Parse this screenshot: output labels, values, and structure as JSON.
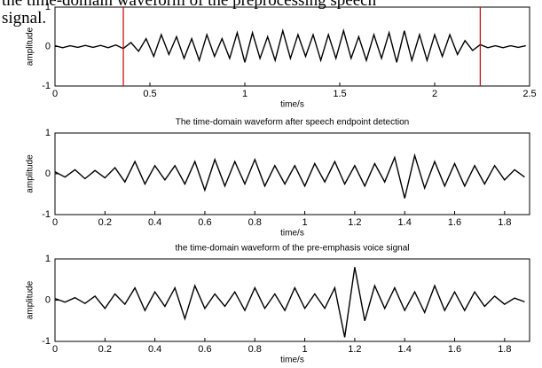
{
  "chart_data": [
    {
      "type": "line",
      "title": "the time-domain waveform of the preprocessing speech signal.",
      "xlabel": "time/s",
      "ylabel": "amplitude",
      "x": [
        0,
        0.04,
        0.08,
        0.12,
        0.16,
        0.2,
        0.24,
        0.28,
        0.32,
        0.36,
        0.4,
        0.44,
        0.48,
        0.52,
        0.56,
        0.6,
        0.64,
        0.68,
        0.72,
        0.76,
        0.8,
        0.84,
        0.88,
        0.92,
        0.96,
        1,
        1.04,
        1.08,
        1.12,
        1.16,
        1.2,
        1.24,
        1.28,
        1.32,
        1.36,
        1.4,
        1.44,
        1.48,
        1.52,
        1.56,
        1.6,
        1.64,
        1.68,
        1.72,
        1.76,
        1.8,
        1.84,
        1.88,
        1.92,
        1.96,
        2,
        2.04,
        2.08,
        2.12,
        2.16,
        2.2,
        2.24,
        2.28,
        2.32,
        2.36,
        2.4,
        2.44,
        2.48
      ],
      "series": [
        {
          "color": "#000000",
          "values": [
            0.02,
            -0.03,
            0.02,
            -0.02,
            0.03,
            -0.02,
            0.03,
            -0.03,
            0.04,
            -0.05,
            0.1,
            -0.12,
            0.2,
            -0.25,
            0.3,
            -0.2,
            0.25,
            -0.3,
            0.2,
            -0.35,
            0.3,
            -0.25,
            0.2,
            -0.3,
            0.35,
            -0.4,
            0.35,
            -0.3,
            0.25,
            -0.35,
            0.4,
            -0.3,
            0.3,
            -0.25,
            0.3,
            -0.35,
            0.3,
            -0.3,
            0.4,
            -0.3,
            0.25,
            -0.35,
            0.3,
            -0.3,
            0.35,
            -0.4,
            0.4,
            -0.35,
            0.3,
            -0.35,
            0.3,
            -0.25,
            0.3,
            -0.2,
            0.15,
            -0.1,
            0.05,
            -0.03,
            0.02,
            -0.03,
            0.02,
            -0.02,
            0.02
          ]
        }
      ],
      "vlines": {
        "color": "#cc0000",
        "x": [
          0.36,
          2.24
        ]
      },
      "xlim": [
        0,
        2.5
      ],
      "xticks": [
        0,
        0.5,
        1,
        1.5,
        2,
        2.5
      ],
      "ylim": [
        -1,
        1
      ],
      "yticks": [
        -1,
        0,
        1
      ]
    },
    {
      "type": "line",
      "title": "The time-domain waveform after speech endpoint detection",
      "xlabel": "time/s",
      "ylabel": "amplitude",
      "x": [
        0,
        0.04,
        0.08,
        0.12,
        0.16,
        0.2,
        0.24,
        0.28,
        0.32,
        0.36,
        0.4,
        0.44,
        0.48,
        0.52,
        0.56,
        0.6,
        0.64,
        0.68,
        0.72,
        0.76,
        0.8,
        0.84,
        0.88,
        0.92,
        0.96,
        1,
        1.04,
        1.08,
        1.12,
        1.16,
        1.2,
        1.24,
        1.28,
        1.32,
        1.36,
        1.4,
        1.44,
        1.48,
        1.52,
        1.56,
        1.6,
        1.64,
        1.68,
        1.72,
        1.76,
        1.8,
        1.84,
        1.88
      ],
      "series": [
        {
          "color": "#000000",
          "values": [
            0.05,
            -0.08,
            0.1,
            -0.12,
            0.08,
            -0.1,
            0.15,
            -0.2,
            0.3,
            -0.25,
            0.2,
            -0.15,
            0.2,
            -0.25,
            0.3,
            -0.4,
            0.35,
            -0.3,
            0.3,
            -0.25,
            0.35,
            -0.3,
            0.2,
            -0.25,
            0.2,
            -0.3,
            0.25,
            -0.2,
            0.3,
            -0.25,
            0.2,
            -0.3,
            0.25,
            -0.2,
            0.4,
            -0.6,
            0.45,
            -0.35,
            0.3,
            -0.3,
            0.25,
            -0.3,
            0.2,
            -0.25,
            0.2,
            -0.15,
            0.1,
            -0.08
          ]
        }
      ],
      "xlim": [
        0,
        1.9
      ],
      "xticks": [
        0,
        0.2,
        0.4,
        0.6,
        0.8,
        1,
        1.2,
        1.4,
        1.6,
        1.8
      ],
      "ylim": [
        -1,
        1
      ],
      "yticks": [
        -1,
        0,
        1
      ]
    },
    {
      "type": "line",
      "title": "the time-domain waveform of the pre-emphasis voice signal",
      "xlabel": "time/s",
      "ylabel": "amplitude",
      "x": [
        0,
        0.04,
        0.08,
        0.12,
        0.16,
        0.2,
        0.24,
        0.28,
        0.32,
        0.36,
        0.4,
        0.44,
        0.48,
        0.52,
        0.56,
        0.6,
        0.64,
        0.68,
        0.72,
        0.76,
        0.8,
        0.84,
        0.88,
        0.92,
        0.96,
        1,
        1.04,
        1.08,
        1.12,
        1.16,
        1.2,
        1.24,
        1.28,
        1.32,
        1.36,
        1.4,
        1.44,
        1.48,
        1.52,
        1.56,
        1.6,
        1.64,
        1.68,
        1.72,
        1.76,
        1.8,
        1.84,
        1.88
      ],
      "series": [
        {
          "color": "#000000",
          "values": [
            0.04,
            -0.05,
            0.06,
            -0.08,
            0.1,
            -0.2,
            0.15,
            -0.1,
            0.3,
            -0.25,
            0.2,
            -0.15,
            0.3,
            -0.45,
            0.35,
            -0.2,
            0.15,
            -0.15,
            0.2,
            -0.25,
            0.3,
            -0.2,
            0.15,
            -0.25,
            0.3,
            -0.2,
            0.15,
            -0.2,
            0.3,
            -0.9,
            0.8,
            -0.5,
            0.35,
            -0.2,
            0.3,
            -0.25,
            0.2,
            -0.3,
            0.35,
            -0.25,
            0.2,
            -0.25,
            0.2,
            -0.15,
            0.1,
            -0.1,
            0.05,
            -0.04
          ]
        }
      ],
      "xlim": [
        0,
        1.9
      ],
      "xticks": [
        0,
        0.2,
        0.4,
        0.6,
        0.8,
        1,
        1.2,
        1.4,
        1.6,
        1.8
      ],
      "ylim": [
        -1,
        1
      ],
      "yticks": [
        -1,
        0,
        1
      ]
    }
  ]
}
